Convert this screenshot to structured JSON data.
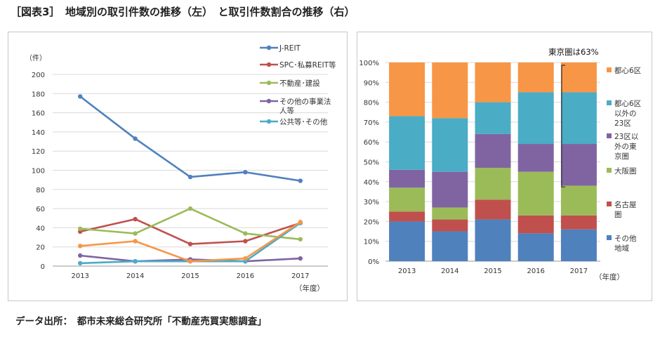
{
  "title": "［図表3］　地域別の取引件数の推移（左）　と取引件数割合の推移（右）",
  "source": "データ出所：　都市未来総合研究所「不動産売買実態調査」",
  "chart_data": [
    {
      "type": "line",
      "y_unit_label": "（件）",
      "x_unit_label": "（年度）",
      "categories": [
        "2013",
        "2014",
        "2015",
        "2016",
        "2017"
      ],
      "ylim": [
        0,
        200
      ],
      "yticks": [
        "0",
        "20",
        "40",
        "60",
        "80",
        "100",
        "120",
        "140",
        "160",
        "180",
        "200"
      ],
      "grid": true,
      "legend_position": "right",
      "series": [
        {
          "name": "J-REIT",
          "color": "#4f81bd",
          "values": [
            177,
            133,
            93,
            98,
            89
          ]
        },
        {
          "name": "SPC･私募REIT等",
          "color": "#c0504d",
          "values": [
            36,
            49,
            23,
            26,
            45
          ]
        },
        {
          "name": "不動産･建設",
          "color": "#9bbb59",
          "values": [
            39,
            34,
            60,
            34,
            28
          ]
        },
        {
          "name": "その他の事業法人等",
          "color": "#8064a2",
          "values": [
            11,
            5,
            7,
            5,
            8
          ]
        },
        {
          "name": "公共等･その他",
          "color": "#4bacc6",
          "values": [
            3,
            5,
            5,
            5,
            45
          ]
        },
        {
          "name": "",
          "color": "#f79646",
          "values": [
            21,
            26,
            5,
            8,
            46
          ]
        }
      ]
    },
    {
      "type": "bar",
      "stacked": true,
      "x_unit_label": "（年度）",
      "categories": [
        "2013",
        "2014",
        "2015",
        "2016",
        "2017"
      ],
      "ylim": [
        0,
        100
      ],
      "yticks": [
        "0%",
        "10%",
        "20%",
        "30%",
        "40%",
        "50%",
        "60%",
        "70%",
        "80%",
        "90%",
        "100%"
      ],
      "grid": true,
      "legend_position": "right",
      "annotation": "東京圏は63%",
      "series": [
        {
          "name": "その他地域",
          "color": "#4f81bd",
          "values": [
            20,
            15,
            21,
            14,
            16
          ]
        },
        {
          "name": "名古屋圏",
          "color": "#c0504d",
          "values": [
            5,
            6,
            10,
            9,
            7
          ]
        },
        {
          "name": "大阪圏",
          "color": "#9bbb59",
          "values": [
            12,
            6,
            16,
            22,
            15
          ]
        },
        {
          "name": "23区以外の東京圏",
          "color": "#8064a2",
          "values": [
            9,
            18,
            17,
            14,
            21
          ]
        },
        {
          "name": "都心6区以外の23区",
          "color": "#4bacc6",
          "values": [
            27,
            27,
            16,
            26,
            26
          ]
        },
        {
          "name": "都心6区",
          "color": "#f79646",
          "values": [
            27,
            28,
            20,
            15,
            15
          ]
        }
      ]
    }
  ]
}
